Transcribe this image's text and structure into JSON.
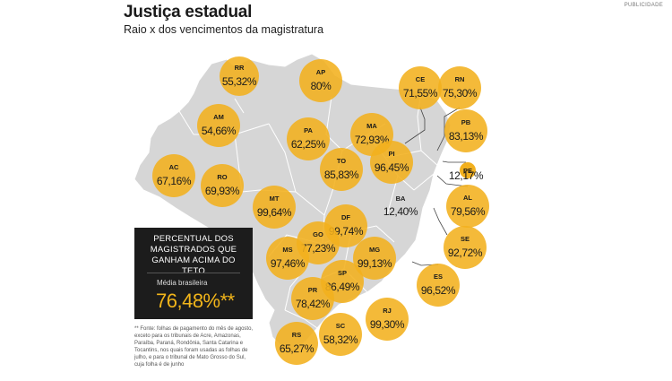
{
  "header": {
    "title": "Justiça estadual",
    "subtitle": "Raio x dos vencimentos da magistratura",
    "ad_label": "PUBLICIDADE"
  },
  "legend": {
    "title": "PERCENTUAL DOS MAGISTRADOS QUE GANHAM ACIMA DO TETO",
    "average_label": "Média brasileira",
    "average_value": "76,48%**"
  },
  "footnote": "** Fonte: folhas de pagamento do mês de agosto, exceto para os tribunais de Acre, Amazonas, Paraíba, Paraná, Rondônia, Santa Catarina e Tocantins, nos quais foram usadas as folhas de julho, e para o tribunal de Mato Grosso do Sul, cuja folha é de junho",
  "colors": {
    "bubble": "#f2b01e",
    "map": "#d6d6d6",
    "text": "#1a1a1a",
    "legend_bg": "#1c1c1c"
  },
  "chart_data": {
    "type": "bubble-map",
    "title": "Justiça estadual",
    "subtitle": "Raio x dos vencimentos da magistratura",
    "unit": "%",
    "states": [
      {
        "uf": "RR",
        "label": "55,32%",
        "value": 55.32
      },
      {
        "uf": "AP",
        "label": "80%",
        "value": 80.0
      },
      {
        "uf": "CE",
        "label": "71,55%",
        "value": 71.55
      },
      {
        "uf": "RN",
        "label": "75,30%",
        "value": 75.3
      },
      {
        "uf": "AM",
        "label": "54,66%",
        "value": 54.66
      },
      {
        "uf": "PA",
        "label": "62,25%",
        "value": 62.25
      },
      {
        "uf": "MA",
        "label": "72,93%",
        "value": 72.93
      },
      {
        "uf": "PB",
        "label": "83,13%",
        "value": 83.13
      },
      {
        "uf": "PI",
        "label": "96,45%",
        "value": 96.45
      },
      {
        "uf": "PE",
        "label": "12,17%",
        "value": 12.17
      },
      {
        "uf": "AC",
        "label": "67,16%",
        "value": 67.16
      },
      {
        "uf": "RO",
        "label": "69,93%",
        "value": 69.93
      },
      {
        "uf": "TO",
        "label": "85,83%",
        "value": 85.83
      },
      {
        "uf": "MT",
        "label": "99,64%",
        "value": 99.64
      },
      {
        "uf": "BA",
        "label": "12,40%",
        "value": 12.4
      },
      {
        "uf": "AL",
        "label": "79,56%",
        "value": 79.56
      },
      {
        "uf": "DF",
        "label": "99,74%",
        "value": 99.74
      },
      {
        "uf": "GO",
        "label": "77,23%",
        "value": 77.23
      },
      {
        "uf": "SE",
        "label": "92,72%",
        "value": 92.72
      },
      {
        "uf": "MS",
        "label": "97,46%",
        "value": 97.46
      },
      {
        "uf": "MG",
        "label": "99,13%",
        "value": 99.13
      },
      {
        "uf": "SP",
        "label": "86,49%",
        "value": 86.49
      },
      {
        "uf": "ES",
        "label": "96,52%",
        "value": 96.52
      },
      {
        "uf": "PR",
        "label": "78,42%",
        "value": 78.42
      },
      {
        "uf": "RJ",
        "label": "99,30%",
        "value": 99.3
      },
      {
        "uf": "SC",
        "label": "58,32%",
        "value": 58.32
      },
      {
        "uf": "RS",
        "label": "65,27%",
        "value": 65.27
      }
    ]
  }
}
